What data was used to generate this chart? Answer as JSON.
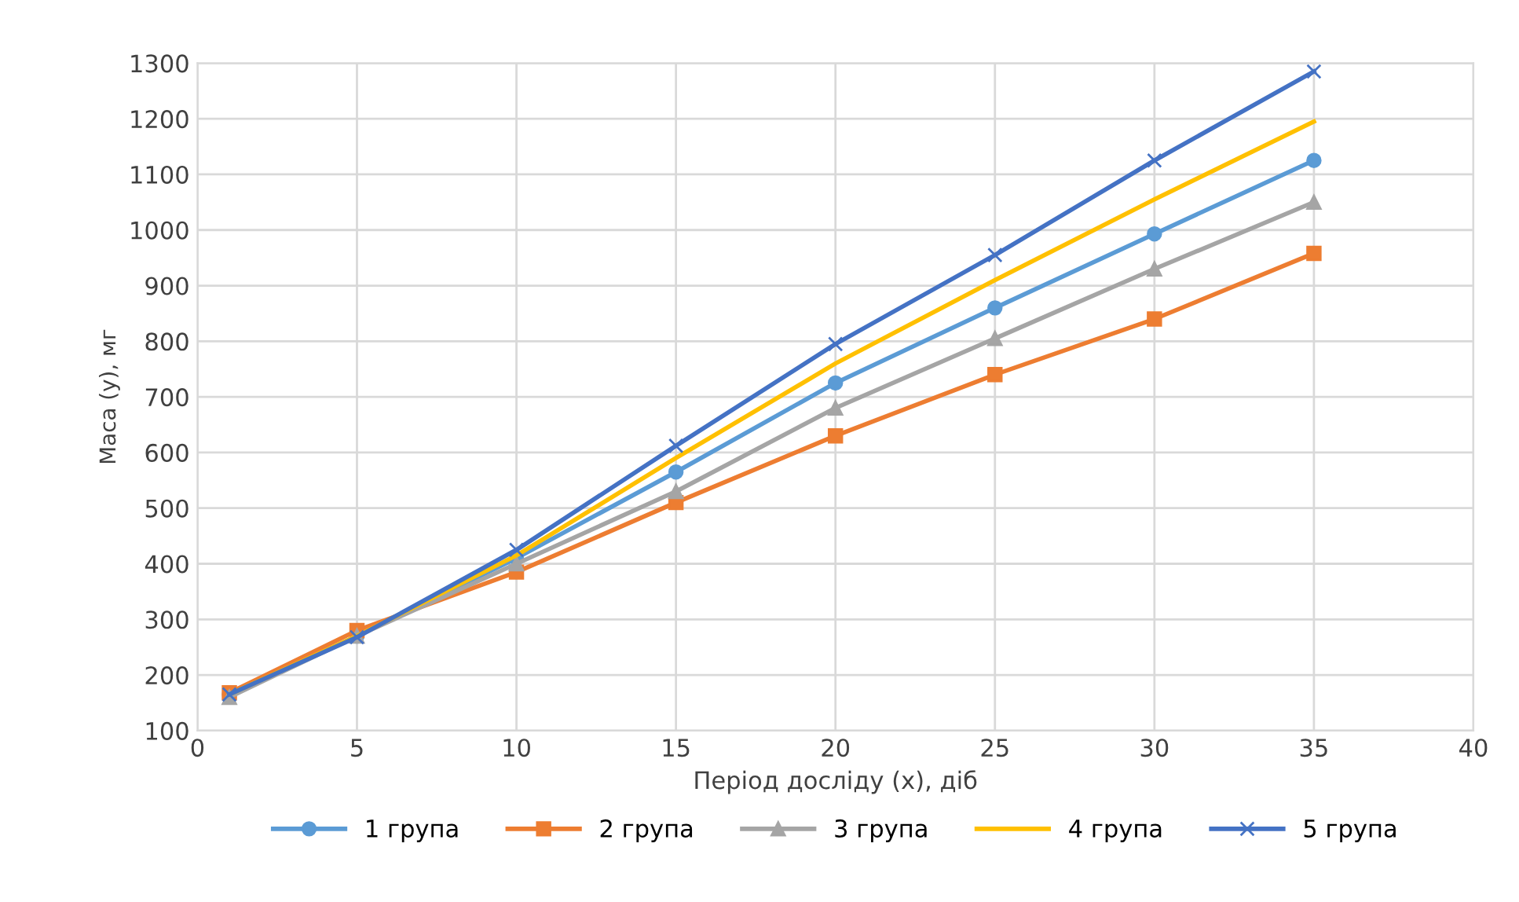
{
  "chart_data": {
    "type": "line",
    "xlabel": "Період досліду (х), діб",
    "ylabel": "Маса (у), мг",
    "x": [
      1,
      5,
      10,
      15,
      20,
      25,
      30,
      35
    ],
    "series": [
      {
        "name": "1 група",
        "color": "#5b9bd5",
        "marker": "circle",
        "values": [
          165,
          270,
          410,
          565,
          725,
          860,
          993,
          1125
        ]
      },
      {
        "name": "2 група",
        "color": "#ed7d31",
        "marker": "square",
        "values": [
          168,
          280,
          385,
          510,
          630,
          740,
          840,
          958
        ]
      },
      {
        "name": "3 група",
        "color": "#a5a5a5",
        "marker": "triangle",
        "values": [
          160,
          270,
          400,
          530,
          680,
          805,
          930,
          1050
        ]
      },
      {
        "name": "4 група",
        "color": "#ffc000",
        "marker": "none",
        "values": [
          165,
          270,
          415,
          590,
          760,
          910,
          1055,
          1195
        ]
      },
      {
        "name": "5 група",
        "color": "#4472c4",
        "marker": "cross",
        "values": [
          165,
          268,
          425,
          612,
          795,
          955,
          1125,
          1285
        ]
      }
    ],
    "xlim": [
      0,
      40
    ],
    "xticks": [
      0,
      5,
      10,
      15,
      20,
      25,
      30,
      35,
      40
    ],
    "ylim": [
      100,
      1300
    ],
    "yticks": [
      100,
      200,
      300,
      400,
      500,
      600,
      700,
      800,
      900,
      1000,
      1100,
      1200,
      1300
    ],
    "grid": true,
    "legend": "bottom"
  }
}
